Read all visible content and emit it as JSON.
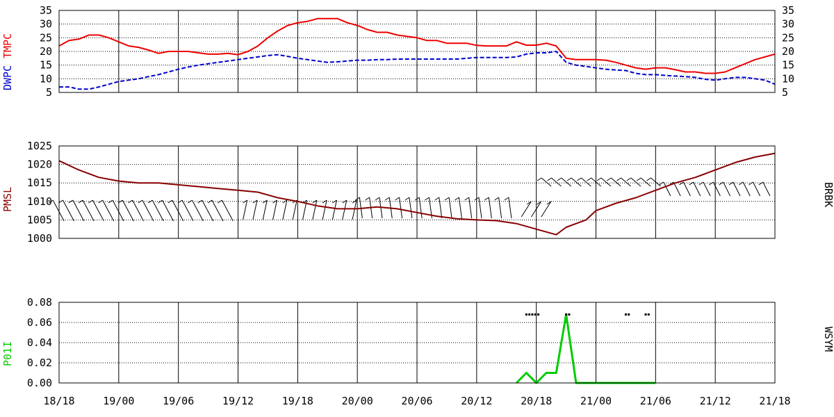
{
  "colors": {
    "tmpc": "#ee0000",
    "dwpc": "#0000cc",
    "pmsl": "#880000",
    "p01i": "#00cc00",
    "axis": "#000000"
  },
  "chart_data": [
    {
      "type": "line",
      "panel": "temperature",
      "ylabel_left": [
        "DWPC",
        "TMPC"
      ],
      "ylim": [
        5,
        35
      ],
      "yticks": [
        35,
        30,
        25,
        20,
        15,
        10,
        5
      ],
      "xticks": [
        "18/18",
        "19/00",
        "19/06",
        "19/12",
        "19/18",
        "20/00",
        "20/06",
        "20/12",
        "20/18",
        "21/00",
        "21/06",
        "21/12",
        "21/18"
      ],
      "xlim_hours": [
        0,
        72
      ],
      "series": [
        {
          "name": "TMPC",
          "x": [
            0,
            1,
            2,
            3,
            4,
            5,
            6,
            7,
            8,
            9,
            10,
            11,
            12,
            13,
            14,
            15,
            16,
            17,
            18,
            19,
            20,
            21,
            22,
            23,
            24,
            25,
            26,
            27,
            28,
            29,
            30,
            31,
            32,
            33,
            34,
            35,
            36,
            37,
            38,
            39,
            40,
            41,
            42,
            43,
            44,
            45,
            46,
            47,
            48,
            49,
            50,
            51,
            52,
            53,
            54,
            55,
            56,
            57,
            58,
            59,
            60,
            61,
            62,
            63,
            64,
            65,
            66,
            67,
            68,
            69,
            70,
            71,
            72
          ],
          "y": [
            22,
            24,
            24.5,
            26,
            26,
            25,
            23.5,
            22,
            21.5,
            20.5,
            19.3,
            20,
            20,
            20,
            19.5,
            19,
            19,
            19.3,
            18.8,
            20,
            22,
            25,
            27.5,
            29.5,
            30.5,
            31,
            32,
            32,
            32,
            30.5,
            29.5,
            28,
            27,
            27,
            26,
            25.5,
            25,
            24,
            24,
            23,
            23,
            23,
            22.2,
            22,
            22,
            22,
            23.5,
            22.3,
            22.3,
            23,
            22,
            17.5,
            17,
            17,
            17,
            16.8,
            16,
            15,
            14,
            13.5,
            14,
            14,
            13.3,
            12.5,
            12.5,
            12,
            12,
            12.5,
            14,
            15.5,
            17,
            18,
            19
          ]
        },
        {
          "name": "DWPC",
          "x": [
            0,
            1,
            2,
            3,
            4,
            5,
            6,
            7,
            8,
            9,
            10,
            11,
            12,
            13,
            14,
            15,
            16,
            17,
            18,
            19,
            20,
            21,
            22,
            23,
            24,
            25,
            26,
            27,
            28,
            29,
            30,
            31,
            32,
            33,
            34,
            35,
            36,
            37,
            38,
            39,
            40,
            41,
            42,
            43,
            44,
            45,
            46,
            47,
            48,
            49,
            50,
            51,
            52,
            53,
            54,
            55,
            56,
            57,
            58,
            59,
            60,
            61,
            62,
            63,
            64,
            65,
            66,
            67,
            68,
            69,
            70,
            71,
            72
          ],
          "y": [
            7,
            7,
            6.2,
            6.2,
            7,
            8,
            9,
            9.5,
            10,
            10.8,
            11.5,
            12.5,
            13.5,
            14.3,
            15,
            15.5,
            16,
            16.5,
            17,
            17.5,
            18,
            18.5,
            18.8,
            18.2,
            17.5,
            17,
            16.5,
            16,
            16.2,
            16.5,
            16.8,
            16.8,
            17,
            17,
            17.2,
            17.2,
            17.2,
            17.2,
            17.2,
            17.2,
            17.2,
            17.5,
            17.8,
            17.8,
            17.8,
            17.8,
            18,
            19,
            19.5,
            19.5,
            20,
            16,
            15,
            14.5,
            14,
            13.5,
            13.2,
            13,
            12,
            11.5,
            11.5,
            11.2,
            11,
            10.8,
            10.5,
            9.8,
            9.5,
            10,
            10.5,
            10.5,
            10,
            9.5,
            8
          ]
        }
      ]
    },
    {
      "type": "line",
      "panel": "pressure",
      "ylabel_left": "PMSL",
      "ylabel_right": "BRBK",
      "ylim": [
        1000,
        1025
      ],
      "yticks": [
        1025,
        1020,
        1015,
        1010,
        1005,
        1000
      ],
      "series": [
        {
          "name": "PMSL",
          "x": [
            0,
            2,
            4,
            6,
            8,
            10,
            12,
            14,
            16,
            18,
            20,
            22,
            24,
            26,
            28,
            30,
            32,
            34,
            36,
            38,
            40,
            42,
            44,
            46,
            48,
            50,
            51,
            52,
            53,
            54,
            55,
            56,
            58,
            60,
            62,
            64,
            66,
            68,
            70,
            72
          ],
          "y": [
            1021,
            1018.5,
            1016.5,
            1015.5,
            1015,
            1015,
            1014.5,
            1014,
            1013.5,
            1013,
            1012.5,
            1011,
            1010,
            1008.8,
            1008,
            1008,
            1008.5,
            1008,
            1007,
            1006,
            1005.3,
            1005,
            1004.8,
            1004,
            1002.5,
            1001,
            1003,
            1004,
            1005,
            1007.5,
            1008.5,
            1009.5,
            1011,
            1013,
            1015,
            1016.5,
            1018.5,
            1020.5,
            1022,
            1023
          ]
        }
      ],
      "wind_barbs": "station model wind barbs drawn along the pressure panel"
    },
    {
      "type": "line",
      "panel": "precipitation",
      "ylabel_left": "P01I",
      "ylabel_right": "WSYM",
      "ylim": [
        0,
        0.08
      ],
      "yticks": [
        "0.08",
        "0.06",
        "0.04",
        "0.02",
        "0.00"
      ],
      "series": [
        {
          "name": "P01I",
          "x": [
            46,
            47,
            48,
            49,
            50,
            51,
            52,
            53,
            54,
            55,
            56,
            57,
            58,
            59,
            60
          ],
          "y": [
            0,
            0.01,
            0,
            0.01,
            0.01,
            0.068,
            0,
            0,
            0,
            0,
            0,
            0,
            0,
            0,
            0
          ]
        }
      ],
      "wsym_marks_x": [
        47,
        47.3,
        47.6,
        47.9,
        48.2,
        51,
        51.3,
        57,
        57.3,
        59,
        59.3
      ]
    }
  ]
}
